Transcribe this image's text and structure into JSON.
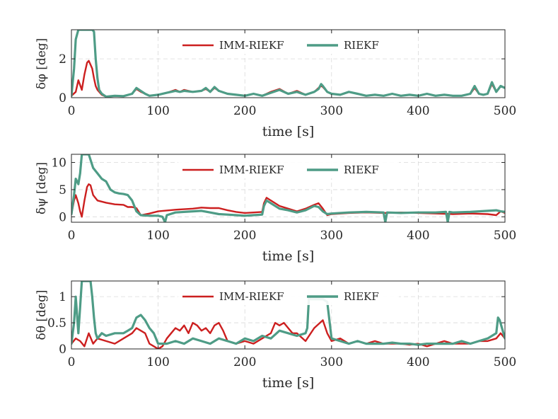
{
  "chart_data": [
    {
      "type": "line",
      "id": "roll",
      "xlabel": "time [s]",
      "ylabel": "δφ  [deg]",
      "xlim": [
        0,
        500
      ],
      "ylim": [
        0,
        3.5
      ],
      "xticks": [
        0,
        100,
        200,
        300,
        400,
        500
      ],
      "yticks": [
        0,
        2
      ],
      "grid": true,
      "legend_position": "top",
      "series": [
        {
          "name": "IMM-RIEKF",
          "color": "#cc1f1f",
          "x": [
            0,
            5,
            8,
            12,
            15,
            18,
            20,
            22,
            24,
            26,
            28,
            30,
            35,
            40,
            50,
            60,
            70,
            75,
            80,
            85,
            90,
            100,
            110,
            120,
            125,
            130,
            140,
            150,
            155,
            160,
            165,
            170,
            180,
            190,
            200,
            210,
            220,
            230,
            240,
            250,
            260,
            270,
            280,
            285,
            288,
            290,
            295,
            300,
            310,
            320,
            330,
            340,
            350,
            360,
            370,
            380,
            390,
            400,
            410,
            420,
            430,
            440,
            450,
            460,
            465,
            470,
            475,
            480,
            485,
            490,
            495,
            500
          ],
          "y": [
            0.1,
            0.3,
            0.9,
            0.4,
            1.2,
            1.8,
            1.9,
            1.7,
            1.5,
            1.0,
            0.6,
            0.4,
            0.15,
            0.05,
            0.1,
            0.08,
            0.2,
            0.45,
            0.3,
            0.2,
            0.1,
            0.15,
            0.25,
            0.4,
            0.3,
            0.4,
            0.3,
            0.35,
            0.45,
            0.3,
            0.5,
            0.35,
            0.2,
            0.15,
            0.1,
            0.2,
            0.1,
            0.3,
            0.45,
            0.2,
            0.35,
            0.15,
            0.3,
            0.5,
            0.6,
            0.55,
            0.3,
            0.2,
            0.15,
            0.3,
            0.2,
            0.1,
            0.15,
            0.1,
            0.2,
            0.1,
            0.15,
            0.1,
            0.2,
            0.1,
            0.15,
            0.1,
            0.1,
            0.2,
            0.5,
            0.2,
            0.15,
            0.2,
            0.7,
            0.3,
            0.6,
            0.5
          ]
        },
        {
          "name": "RIEKF",
          "color": "#4e9c86",
          "x": [
            0,
            3,
            5,
            8,
            10,
            12,
            14,
            16,
            18,
            20,
            22,
            24,
            26,
            28,
            30,
            32,
            35,
            40,
            50,
            60,
            70,
            75,
            80,
            85,
            90,
            100,
            110,
            120,
            125,
            130,
            140,
            150,
            155,
            160,
            165,
            170,
            180,
            190,
            200,
            210,
            220,
            230,
            240,
            250,
            260,
            270,
            280,
            285,
            288,
            290,
            295,
            300,
            310,
            320,
            330,
            340,
            350,
            360,
            370,
            380,
            390,
            400,
            410,
            420,
            430,
            440,
            450,
            460,
            465,
            470,
            475,
            480,
            485,
            490,
            495,
            500
          ],
          "y": [
            0.1,
            1.5,
            3.0,
            3.5,
            3.5,
            3.5,
            3.5,
            3.5,
            3.5,
            3.5,
            3.5,
            3.5,
            3.4,
            2.0,
            1.0,
            0.4,
            0.2,
            0.05,
            0.1,
            0.08,
            0.2,
            0.5,
            0.35,
            0.2,
            0.1,
            0.15,
            0.25,
            0.35,
            0.3,
            0.35,
            0.3,
            0.35,
            0.5,
            0.3,
            0.55,
            0.35,
            0.2,
            0.15,
            0.1,
            0.2,
            0.1,
            0.25,
            0.4,
            0.2,
            0.3,
            0.15,
            0.3,
            0.45,
            0.7,
            0.6,
            0.3,
            0.2,
            0.15,
            0.3,
            0.2,
            0.1,
            0.15,
            0.1,
            0.2,
            0.1,
            0.15,
            0.1,
            0.2,
            0.1,
            0.15,
            0.1,
            0.1,
            0.2,
            0.6,
            0.2,
            0.15,
            0.2,
            0.8,
            0.3,
            0.6,
            0.5
          ]
        }
      ]
    },
    {
      "type": "line",
      "id": "yaw",
      "xlabel": "time [s]",
      "ylabel": "δψ [deg]",
      "xlim": [
        0,
        500
      ],
      "ylim": [
        -1,
        11.5
      ],
      "xticks": [
        0,
        100,
        200,
        300,
        400,
        500
      ],
      "yticks": [
        0,
        5,
        10
      ],
      "grid": true,
      "legend_position": "top",
      "series": [
        {
          "name": "IMM-RIEKF",
          "color": "#cc1f1f",
          "x": [
            0,
            3,
            5,
            8,
            10,
            12,
            15,
            18,
            20,
            22,
            25,
            30,
            40,
            50,
            60,
            65,
            70,
            75,
            80,
            90,
            100,
            120,
            140,
            150,
            160,
            170,
            180,
            190,
            200,
            210,
            220,
            222,
            225,
            230,
            240,
            250,
            260,
            270,
            280,
            285,
            290,
            295,
            300,
            320,
            340,
            360,
            380,
            400,
            420,
            440,
            460,
            480,
            490,
            495,
            500
          ],
          "y": [
            0.5,
            3.0,
            4.0,
            2.5,
            1.0,
            0.0,
            3.0,
            5.5,
            6.0,
            5.8,
            4.0,
            3.0,
            2.6,
            2.3,
            2.2,
            1.8,
            1.8,
            1.6,
            0.3,
            0.6,
            1.0,
            1.3,
            1.5,
            1.7,
            1.6,
            1.6,
            1.2,
            0.9,
            0.7,
            0.8,
            0.9,
            2.5,
            3.5,
            3.0,
            2.0,
            1.5,
            1.0,
            1.5,
            2.2,
            2.5,
            1.5,
            0.3,
            0.5,
            0.7,
            0.8,
            0.7,
            0.8,
            0.7,
            0.6,
            0.5,
            0.6,
            0.5,
            0.3,
            1.0,
            0.7
          ]
        },
        {
          "name": "RIEKF",
          "color": "#4e9c86",
          "x": [
            0,
            3,
            5,
            8,
            10,
            12,
            14,
            16,
            18,
            20,
            25,
            30,
            35,
            40,
            45,
            50,
            55,
            60,
            65,
            70,
            75,
            80,
            90,
            100,
            105,
            108,
            110,
            120,
            140,
            150,
            160,
            170,
            180,
            190,
            200,
            210,
            220,
            222,
            225,
            230,
            240,
            250,
            260,
            270,
            280,
            285,
            290,
            295,
            300,
            320,
            340,
            360,
            362,
            364,
            380,
            400,
            420,
            432,
            434,
            436,
            440,
            460,
            480,
            490,
            495,
            500
          ],
          "y": [
            0.5,
            4.0,
            7.0,
            6.0,
            8.0,
            11.5,
            11.5,
            11.5,
            11.5,
            11.5,
            9.0,
            8.0,
            7.0,
            6.5,
            5.0,
            4.5,
            4.3,
            4.2,
            4.0,
            3.0,
            1.0,
            0.3,
            0.2,
            0.2,
            0.0,
            -1.0,
            0.3,
            0.8,
            1.0,
            1.1,
            0.8,
            0.5,
            0.4,
            0.3,
            0.2,
            0.3,
            0.4,
            2.0,
            3.0,
            2.5,
            1.5,
            1.2,
            0.8,
            1.2,
            2.0,
            1.8,
            1.0,
            0.5,
            0.6,
            0.8,
            0.9,
            0.8,
            -1.0,
            0.8,
            0.7,
            0.8,
            0.8,
            0.9,
            -1.0,
            0.9,
            0.8,
            0.9,
            1.1,
            1.2,
            1.0,
            0.9
          ]
        }
      ]
    },
    {
      "type": "line",
      "id": "pitch",
      "xlabel": "time [s]",
      "ylabel": "δθ [deg]",
      "xlim": [
        0,
        500
      ],
      "ylim": [
        0,
        1.3
      ],
      "xticks": [
        0,
        100,
        200,
        300,
        400,
        500
      ],
      "yticks": [
        0,
        0.5,
        1
      ],
      "grid": true,
      "legend_position": "top",
      "series": [
        {
          "name": "IMM-RIEKF",
          "color": "#cc1f1f",
          "x": [
            0,
            5,
            10,
            15,
            20,
            25,
            30,
            40,
            50,
            60,
            70,
            75,
            80,
            85,
            90,
            95,
            100,
            105,
            110,
            115,
            120,
            125,
            130,
            135,
            140,
            145,
            150,
            155,
            160,
            165,
            170,
            175,
            180,
            190,
            200,
            210,
            220,
            230,
            235,
            240,
            245,
            250,
            255,
            260,
            270,
            280,
            290,
            295,
            300,
            310,
            320,
            330,
            340,
            350,
            360,
            370,
            380,
            390,
            400,
            410,
            420,
            430,
            440,
            450,
            460,
            470,
            480,
            490,
            495,
            500
          ],
          "y": [
            0.1,
            0.2,
            0.15,
            0.05,
            0.3,
            0.1,
            0.2,
            0.15,
            0.1,
            0.2,
            0.3,
            0.4,
            0.35,
            0.3,
            0.1,
            0.05,
            0.0,
            0.05,
            0.2,
            0.3,
            0.4,
            0.35,
            0.45,
            0.3,
            0.5,
            0.45,
            0.35,
            0.4,
            0.3,
            0.45,
            0.5,
            0.35,
            0.15,
            0.1,
            0.15,
            0.1,
            0.2,
            0.3,
            0.5,
            0.45,
            0.5,
            0.4,
            0.3,
            0.3,
            0.15,
            0.4,
            0.55,
            0.3,
            0.15,
            0.2,
            0.1,
            0.15,
            0.1,
            0.15,
            0.1,
            0.1,
            0.1,
            0.08,
            0.1,
            0.05,
            0.1,
            0.15,
            0.1,
            0.1,
            0.1,
            0.15,
            0.15,
            0.2,
            0.3,
            0.2
          ]
        },
        {
          "name": "RIEKF",
          "color": "#4e9c86",
          "x": [
            0,
            3,
            5,
            8,
            10,
            12,
            14,
            16,
            18,
            20,
            22,
            24,
            26,
            28,
            30,
            35,
            40,
            50,
            60,
            65,
            70,
            75,
            80,
            85,
            90,
            95,
            100,
            110,
            120,
            130,
            140,
            150,
            160,
            170,
            180,
            190,
            200,
            210,
            220,
            230,
            240,
            250,
            260,
            270,
            272,
            274,
            276,
            280,
            290,
            295,
            300,
            310,
            320,
            330,
            340,
            350,
            360,
            370,
            380,
            390,
            400,
            410,
            420,
            430,
            440,
            450,
            460,
            470,
            480,
            490,
            492,
            494,
            500
          ],
          "y": [
            0.1,
            0.5,
            1.0,
            0.3,
            0.8,
            1.3,
            1.3,
            1.3,
            1.3,
            1.3,
            1.3,
            1.0,
            0.6,
            0.3,
            0.2,
            0.3,
            0.25,
            0.3,
            0.3,
            0.35,
            0.4,
            0.6,
            0.65,
            0.55,
            0.4,
            0.3,
            0.1,
            0.1,
            0.15,
            0.1,
            0.2,
            0.15,
            0.1,
            0.2,
            0.15,
            0.1,
            0.2,
            0.15,
            0.25,
            0.2,
            0.35,
            0.3,
            0.25,
            0.3,
            0.4,
            1.0,
            0.95,
            0.95,
            0.95,
            0.9,
            0.2,
            0.15,
            0.1,
            0.15,
            0.1,
            0.1,
            0.1,
            0.12,
            0.1,
            0.1,
            0.08,
            0.1,
            0.1,
            0.1,
            0.1,
            0.15,
            0.1,
            0.15,
            0.2,
            0.3,
            0.6,
            0.55,
            0.2
          ]
        }
      ]
    }
  ]
}
